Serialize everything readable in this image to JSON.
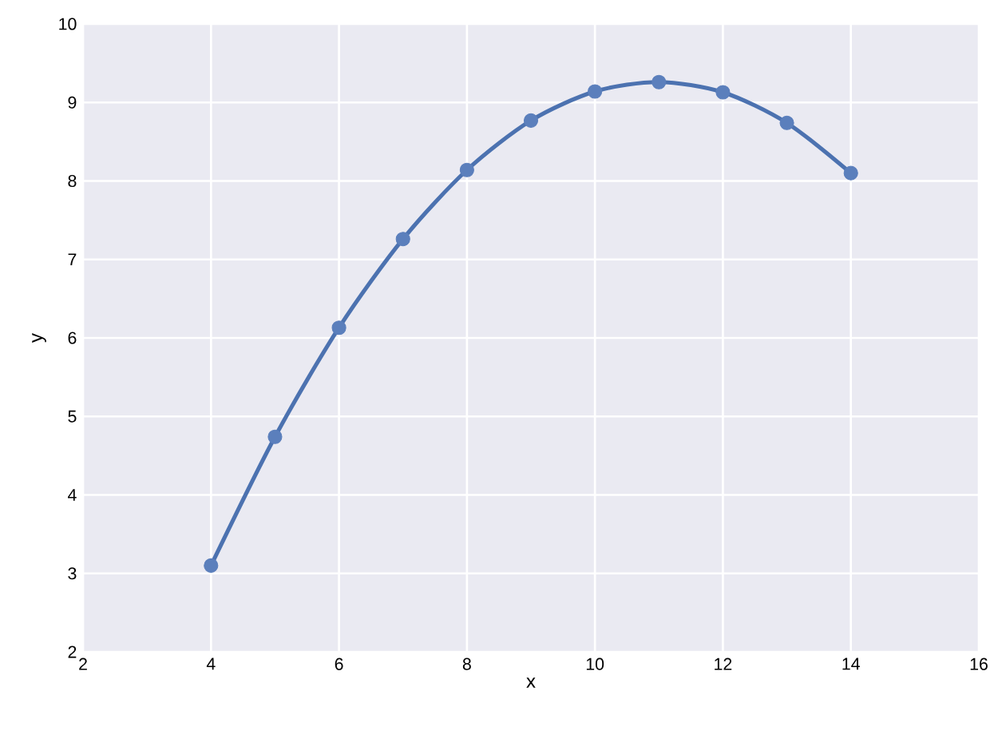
{
  "chart_data": {
    "type": "scatter",
    "xlabel": "x",
    "ylabel": "y",
    "xlim": [
      2,
      16
    ],
    "ylim": [
      2,
      10
    ],
    "xticks": [
      2,
      4,
      6,
      8,
      10,
      12,
      14,
      16
    ],
    "yticks": [
      2,
      3,
      4,
      5,
      6,
      7,
      8,
      9,
      10
    ],
    "grid": true,
    "marker": "circle",
    "series": [
      {
        "type": "line",
        "color": "#4c72b0",
        "marker": "none",
        "x": [
          4,
          5,
          6,
          7,
          8,
          9,
          10,
          11,
          12,
          13,
          14
        ],
        "values": [
          3.1,
          4.74,
          6.13,
          7.26,
          8.14,
          8.77,
          9.14,
          9.26,
          9.13,
          8.74,
          8.1
        ]
      },
      {
        "color": "#5b7fbc",
        "x": [
          4,
          5,
          6,
          7,
          8,
          9,
          10,
          11,
          12,
          13,
          14
        ],
        "values": [
          3.1,
          4.74,
          6.13,
          7.26,
          8.14,
          8.77,
          9.14,
          9.26,
          9.13,
          8.74,
          8.1
        ]
      }
    ]
  }
}
